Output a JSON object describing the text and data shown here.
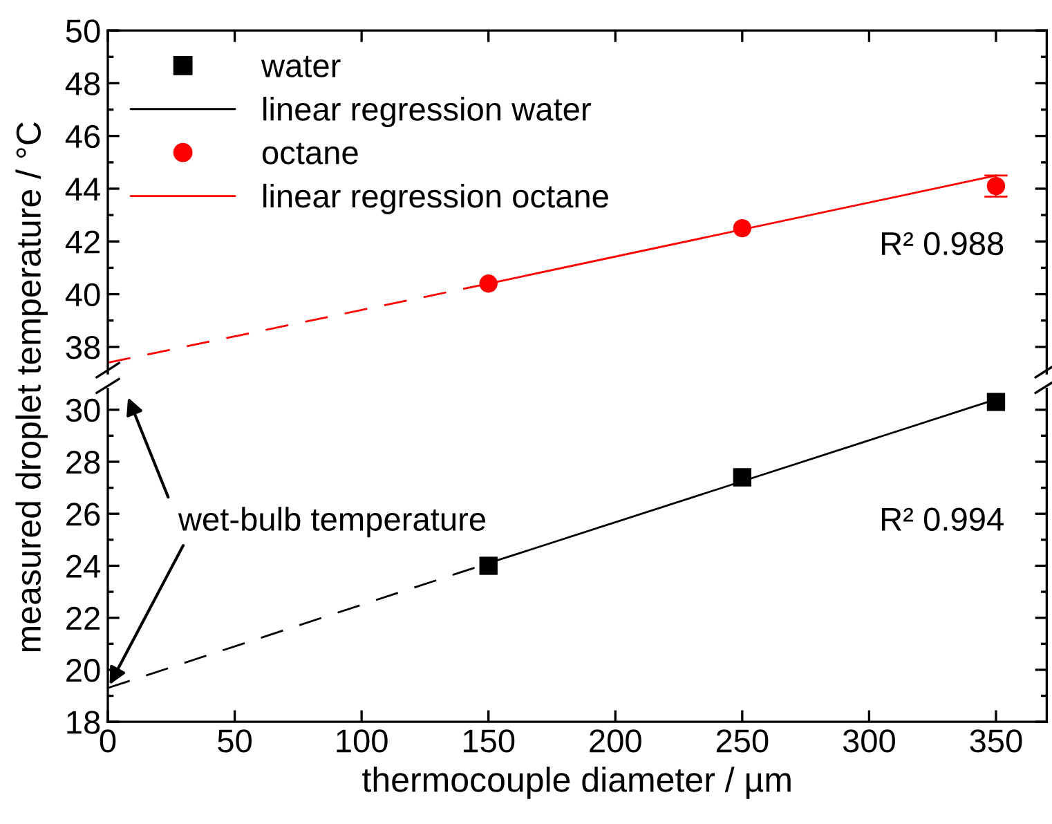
{
  "chart_data": [
    {
      "type": "scatter",
      "ylabel": "measured droplet temperature / °C",
      "xlim": [
        0,
        370
      ],
      "xticks": [
        0,
        50,
        100,
        150,
        200,
        250,
        300,
        350
      ],
      "ylim": [
        37,
        50
      ],
      "yticks": [
        38,
        40,
        42,
        44,
        46,
        48,
        50
      ],
      "tick_labels": "y",
      "legend": "top left",
      "grid": false,
      "series": [
        {
          "name": "octane",
          "marker": "circle",
          "color": "#ff0000",
          "x": [
            150,
            250,
            350
          ],
          "values": [
            40.4,
            42.5,
            44.1
          ],
          "errors": [
            null,
            null,
            0.4
          ]
        },
        {
          "name": "linear regression octane",
          "type": "line",
          "marker": "none",
          "line_style": "solid",
          "color": "#ff0000",
          "x": [
            150,
            350
          ],
          "values": [
            40.4,
            44.5
          ]
        },
        {
          "type": "line",
          "marker": "none",
          "line_style": "dashed",
          "color": "#ff0000",
          "x": [
            0,
            150
          ],
          "values": [
            37.4,
            40.4
          ]
        }
      ],
      "annotations": [
        "R² 0.988"
      ]
    },
    {
      "type": "scatter",
      "xlabel": "thermocouple diameter / µm",
      "xlim": [
        0,
        370
      ],
      "xticks": [
        0,
        50,
        100,
        150,
        200,
        250,
        300,
        350
      ],
      "ylim": [
        18,
        30.8
      ],
      "yticks": [
        18,
        20,
        22,
        24,
        26,
        28,
        30
      ],
      "grid": false,
      "legend": "top left",
      "series": [
        {
          "name": "water",
          "marker": "square",
          "color": "#000000",
          "x": [
            150,
            250,
            350
          ],
          "values": [
            24.0,
            27.4,
            30.3
          ]
        },
        {
          "name": "linear regression water",
          "type": "line",
          "marker": "none",
          "line_style": "solid",
          "color": "#000000",
          "x": [
            150,
            350
          ],
          "values": [
            24.1,
            30.4
          ]
        },
        {
          "type": "line",
          "marker": "none",
          "line_style": "dashed",
          "color": "#000000",
          "x": [
            0,
            150
          ],
          "values": [
            19.3,
            24.1
          ]
        }
      ],
      "annotations": [
        "R² 0.994",
        {
          "text": "wet-bulb temperature",
          "x": 0,
          "y": 19.3
        }
      ]
    }
  ]
}
